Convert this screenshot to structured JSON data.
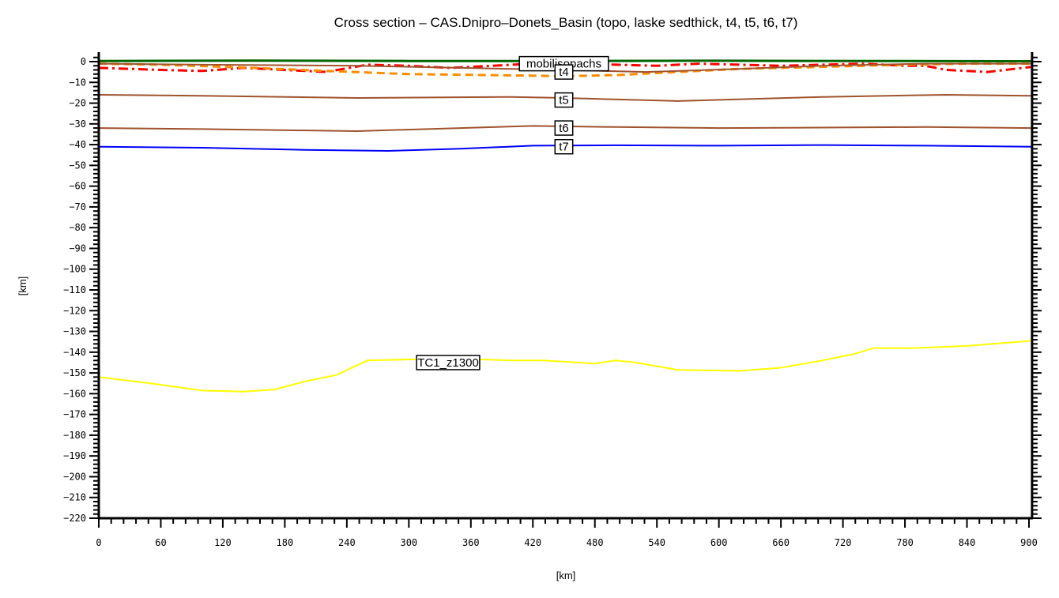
{
  "chart_data": {
    "type": "line",
    "title": "Cross section – CAS.Dnipro–Donets_Basin (topo, laske sedthick, t4, t5, t6, t7)",
    "xlabel": "[km]",
    "ylabel": "[km]",
    "xlim": [
      0,
      903
    ],
    "ylim": [
      -220,
      3
    ],
    "grid": false,
    "legend": "inline labels",
    "x_ticks": [
      0,
      60,
      120,
      180,
      240,
      300,
      360,
      420,
      480,
      540,
      600,
      660,
      720,
      780,
      840,
      900
    ],
    "y_ticks": [
      0,
      -10,
      -20,
      -30,
      -40,
      -50,
      -60,
      -70,
      -80,
      -90,
      -100,
      -110,
      -120,
      -130,
      -140,
      -150,
      -160,
      -170,
      -180,
      -190,
      -200,
      -210,
      -220
    ],
    "series": [
      {
        "name": "topo",
        "color": "#006400",
        "style": "solid",
        "width": 3,
        "x": [
          0,
          150,
          300,
          450,
          600,
          750,
          903
        ],
        "y": [
          0.3,
          0.5,
          0.3,
          0.3,
          0.4,
          0.3,
          0.2
        ]
      },
      {
        "name": "mobilisopachs",
        "label": "mobilisopachs",
        "color": "#ff0000",
        "style": "dashdot",
        "width": 3,
        "x": [
          0,
          30,
          60,
          100,
          140,
          180,
          220,
          260,
          300,
          340,
          380,
          420,
          460,
          500,
          540,
          580,
          620,
          660,
          700,
          740,
          780,
          800,
          820,
          860,
          903
        ],
        "y": [
          -3,
          -3.5,
          -4,
          -4.5,
          -3,
          -4,
          -5,
          -1.5,
          -2,
          -3,
          -2,
          -1,
          -1,
          -1.5,
          -2,
          -1,
          -1.5,
          -2,
          -1.5,
          -1,
          -2,
          -2,
          -4,
          -5,
          -2.5
        ],
        "label_pos": {
          "x": 450,
          "y": -1
        }
      },
      {
        "name": "laske sedthick",
        "color": "#ff8c00",
        "style": "dashed",
        "width": 3,
        "x": [
          0,
          60,
          150,
          220,
          300,
          380,
          450,
          500,
          560,
          620,
          700,
          780,
          840,
          903
        ],
        "y": [
          -1,
          -1.5,
          -3,
          -4.5,
          -6,
          -6.5,
          -7,
          -6.5,
          -5,
          -3.5,
          -2.5,
          -1.5,
          -1,
          -1
        ]
      },
      {
        "name": "t4",
        "label": "t4",
        "color": "#a0522d",
        "style": "solid",
        "width": 2,
        "x": [
          0,
          100,
          250,
          400,
          450,
          530,
          620,
          700,
          800,
          903
        ],
        "y": [
          -1,
          -1.5,
          -2,
          -3.5,
          -4,
          -5,
          -3.5,
          -2,
          -1,
          -1
        ],
        "label_pos": {
          "x": 450,
          "y": -5
        }
      },
      {
        "name": "t5",
        "label": "t5",
        "color": "#a0522d",
        "style": "solid",
        "width": 2,
        "x": [
          0,
          100,
          250,
          400,
          450,
          560,
          700,
          820,
          903
        ],
        "y": [
          -16,
          -16.5,
          -17.5,
          -17,
          -17.5,
          -19,
          -17,
          -16,
          -16.5
        ],
        "label_pos": {
          "x": 450,
          "y": -18.5
        }
      },
      {
        "name": "t6",
        "label": "t6",
        "color": "#a0522d",
        "style": "solid",
        "width": 2,
        "x": [
          0,
          100,
          250,
          350,
          420,
          500,
          600,
          800,
          903
        ],
        "y": [
          -32,
          -32.5,
          -33.5,
          -32,
          -31,
          -31.5,
          -32,
          -31.5,
          -32
        ],
        "label_pos": {
          "x": 450,
          "y": -32
        }
      },
      {
        "name": "t7",
        "label": "t7",
        "color": "#0000ff",
        "style": "solid",
        "width": 2,
        "x": [
          0,
          100,
          200,
          280,
          350,
          420,
          500,
          600,
          700,
          800,
          903
        ],
        "y": [
          -41,
          -41.5,
          -42.5,
          -43,
          -42,
          -40.5,
          -40.3,
          -40.5,
          -40.2,
          -40.5,
          -41
        ],
        "label_pos": {
          "x": 450,
          "y": -41
        }
      },
      {
        "name": "TC1_z1300",
        "label": "TC1_z1300",
        "color": "#ffff00",
        "style": "solid",
        "width": 2,
        "x": [
          0,
          50,
          100,
          140,
          170,
          200,
          230,
          260,
          340,
          400,
          430,
          480,
          500,
          520,
          560,
          620,
          660,
          700,
          730,
          750,
          790,
          840,
          903
        ],
        "y": [
          -152,
          -155,
          -158.5,
          -159,
          -158,
          -154,
          -151,
          -144,
          -143,
          -144,
          -144,
          -145.5,
          -144,
          -145,
          -148.5,
          -149,
          -147.5,
          -144,
          -141,
          -138,
          -138,
          -137,
          -134.5
        ],
        "label_pos": {
          "x": 338,
          "y": -145
        }
      }
    ]
  },
  "labels": {
    "title": "Cross section – CAS.Dnipro–Donets_Basin (topo, laske sedthick, t4, t5, t6, t7)",
    "xlabel": "[km]",
    "ylabel": "[km]"
  }
}
